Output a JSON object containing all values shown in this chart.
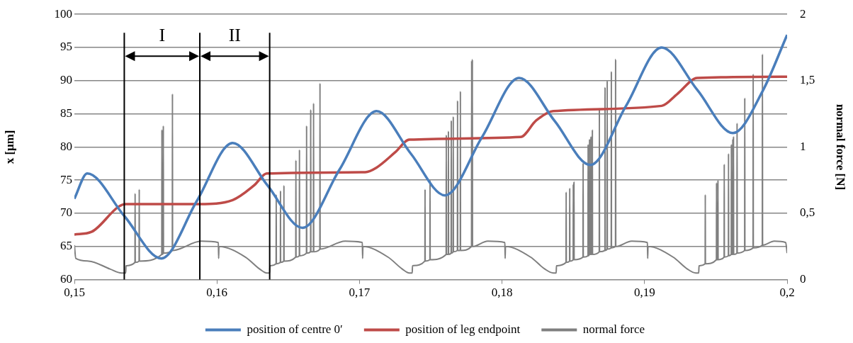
{
  "chart_data": {
    "type": "line",
    "ylabel": "x [μm]",
    "y2label": "normal force [N]",
    "xlim": [
      0.15,
      0.2
    ],
    "xticks": [
      {
        "value": 0.15,
        "label": "0,15"
      },
      {
        "value": 0.16,
        "label": "0,16"
      },
      {
        "value": 0.17,
        "label": "0,17"
      },
      {
        "value": 0.18,
        "label": "0,18"
      },
      {
        "value": 0.19,
        "label": "0,19"
      },
      {
        "value": 0.2,
        "label": "0,2"
      }
    ],
    "ylim": [
      60,
      100
    ],
    "yticks": [
      60,
      65,
      70,
      75,
      80,
      85,
      90,
      95,
      100
    ],
    "y2lim": [
      0,
      2
    ],
    "y2ticks": [
      0,
      {
        "value": 0.5,
        "label": "0,5"
      },
      1,
      {
        "value": 1.5,
        "label": "1,5"
      },
      2
    ],
    "grid": "y",
    "legend": "bottom",
    "marker": "none",
    "series": [
      {
        "name": "position of centre 0ʹ",
        "color": "#4a7ebb",
        "x": [
          0.15,
          0.1509,
          0.1535,
          0.1561,
          0.1586,
          0.1611,
          0.16355,
          0.166,
          0.1686,
          0.1712,
          0.1736,
          0.176,
          0.1786,
          0.1812,
          0.1837,
          0.1862,
          0.1887,
          0.1912,
          0.1937,
          0.1962,
          0.1983,
          0.2
        ],
        "values": [
          72.2,
          76.0,
          69.6,
          63.2,
          71.9,
          80.6,
          74.2,
          67.8,
          76.6,
          85.4,
          79.0,
          72.7,
          81.5,
          90.4,
          83.9,
          77.3,
          86.2,
          95.0,
          88.6,
          82.1,
          88.5,
          96.9
        ]
      },
      {
        "name": "position of leg endpoint",
        "color": "#be4b48",
        "x": [
          0.15,
          0.1512,
          0.1531,
          0.1536,
          0.1588,
          0.1611,
          0.1626,
          0.1635,
          0.1704,
          0.1712,
          0.1725,
          0.1735,
          0.1813,
          0.1824,
          0.1836,
          0.1912,
          0.1923,
          0.1937,
          0.2
        ],
        "values": [
          66.8,
          67.2,
          71.0,
          71.4,
          71.4,
          72.0,
          74.2,
          76.0,
          76.2,
          76.9,
          79.2,
          81.1,
          81.5,
          84.0,
          85.4,
          86.2,
          88.0,
          90.4,
          90.6
        ]
      },
      {
        "name": "normal force",
        "color": "#7f7f7f",
        "axis": "y2",
        "x": [
          0.15,
          0.1501,
          0.151,
          0.1525,
          0.1533,
          0.1536,
          0.15362,
          0.15425,
          0.15426,
          0.15427,
          0.15454,
          0.15455,
          0.15456,
          0.15613,
          0.15614,
          0.15615,
          0.15623,
          0.15624,
          0.15625,
          0.15687,
          0.15688,
          0.15689,
          0.1589,
          0.1601,
          0.16012,
          0.16014,
          0.162,
          0.163,
          0.1635,
          0.1637,
          0.16372,
          0.16415,
          0.16416,
          0.16417,
          0.16445,
          0.16446,
          0.16447,
          0.16469,
          0.1647,
          0.16471,
          0.16553,
          0.16554,
          0.16555,
          0.16578,
          0.16579,
          0.1658,
          0.16628,
          0.16629,
          0.1663,
          0.16657,
          0.16658,
          0.16659,
          0.16677,
          0.16678,
          0.16679,
          0.16722,
          0.16723,
          0.16724,
          0.169,
          0.1702,
          0.17022,
          0.17024,
          0.172,
          0.173,
          0.1735,
          0.1737,
          0.17372,
          0.17459,
          0.1746,
          0.17461,
          0.17494,
          0.17495,
          0.17496,
          0.17608,
          0.17609,
          0.1761,
          0.17623,
          0.17624,
          0.17625,
          0.17643,
          0.17644,
          0.17645,
          0.17657,
          0.17658,
          0.17659,
          0.17687,
          0.17688,
          0.17689,
          0.17707,
          0.17708,
          0.17709,
          0.17786,
          0.17787,
          0.17788,
          0.17791,
          0.17792,
          0.17793,
          0.179,
          0.1802,
          0.18022,
          0.18024,
          0.182,
          0.183,
          0.1836,
          0.1838,
          0.18382,
          0.18449,
          0.1845,
          0.18451,
          0.18474,
          0.18475,
          0.18476,
          0.18499,
          0.185,
          0.18501,
          0.18504,
          0.18505,
          0.18506,
          0.18568,
          0.18569,
          0.1857,
          0.18603,
          0.18604,
          0.18605,
          0.18613,
          0.18614,
          0.18615,
          0.18623,
          0.18624,
          0.18625,
          0.18633,
          0.18634,
          0.18635,
          0.18682,
          0.18683,
          0.18684,
          0.18722,
          0.18723,
          0.18724,
          0.18737,
          0.18738,
          0.18739,
          0.18766,
          0.18767,
          0.18768,
          0.18796,
          0.18797,
          0.18798,
          0.1891,
          0.1902,
          0.19022,
          0.19024,
          0.192,
          0.193,
          0.1936,
          0.1938,
          0.19382,
          0.19425,
          0.19426,
          0.19427,
          0.19504,
          0.19505,
          0.19506,
          0.19514,
          0.19515,
          0.19516,
          0.19558,
          0.19559,
          0.1956,
          0.19588,
          0.19589,
          0.1959,
          0.19608,
          0.19609,
          0.1961,
          0.19618,
          0.19619,
          0.1962,
          0.19623,
          0.19624,
          0.19625,
          0.19648,
          0.19649,
          0.1965,
          0.19702,
          0.19703,
          0.19704,
          0.19761,
          0.19762,
          0.19763,
          0.19826,
          0.19827,
          0.19828,
          0.1991,
          0.1999,
          0.2
        ],
        "values": [
          0.26,
          0.16,
          0.14,
          0.08,
          0.05,
          0.05,
          0.105,
          0.13,
          0.65,
          0.13,
          0.14,
          0.68,
          0.14,
          0.19,
          1.13,
          0.19,
          0.2,
          1.16,
          0.2,
          0.22,
          1.4,
          0.22,
          0.29,
          0.28,
          0.16,
          0.25,
          0.17,
          0.08,
          0.05,
          0.05,
          0.105,
          0.12,
          0.64,
          0.12,
          0.13,
          0.67,
          0.13,
          0.14,
          0.71,
          0.14,
          0.17,
          0.9,
          0.17,
          0.18,
          0.98,
          0.18,
          0.2,
          1.16,
          0.2,
          0.21,
          1.28,
          0.21,
          0.21,
          1.33,
          0.21,
          0.23,
          1.48,
          0.23,
          0.29,
          0.28,
          0.16,
          0.25,
          0.17,
          0.08,
          0.05,
          0.05,
          0.105,
          0.14,
          0.68,
          0.14,
          0.15,
          0.75,
          0.15,
          0.19,
          1.09,
          0.19,
          0.19,
          1.12,
          0.19,
          0.2,
          1.2,
          0.2,
          0.21,
          1.23,
          0.21,
          0.22,
          1.35,
          0.22,
          0.22,
          1.42,
          0.22,
          0.25,
          1.65,
          0.25,
          0.25,
          1.66,
          0.25,
          0.29,
          0.28,
          0.16,
          0.25,
          0.17,
          0.08,
          0.05,
          0.05,
          0.105,
          0.13,
          0.66,
          0.13,
          0.14,
          0.69,
          0.14,
          0.15,
          0.72,
          0.15,
          0.15,
          0.74,
          0.15,
          0.17,
          0.88,
          0.17,
          0.18,
          1.02,
          0.18,
          0.19,
          1.06,
          0.19,
          0.19,
          1.08,
          0.19,
          0.19,
          1.13,
          0.19,
          0.21,
          1.29,
          0.21,
          0.22,
          1.45,
          0.22,
          0.23,
          1.5,
          0.23,
          0.24,
          1.57,
          0.24,
          0.25,
          1.66,
          0.25,
          0.29,
          0.28,
          0.16,
          0.25,
          0.17,
          0.08,
          0.05,
          0.05,
          0.105,
          0.12,
          0.64,
          0.12,
          0.15,
          0.73,
          0.15,
          0.15,
          0.75,
          0.15,
          0.17,
          0.87,
          0.17,
          0.18,
          0.95,
          0.18,
          0.19,
          1.02,
          0.19,
          0.19,
          1.06,
          0.19,
          0.19,
          1.08,
          0.19,
          0.2,
          1.18,
          0.2,
          0.22,
          1.37,
          0.22,
          0.24,
          1.55,
          0.24,
          0.26,
          1.7,
          0.26,
          0.29,
          0.28,
          0.2
        ]
      }
    ],
    "ref_lines": [
      {
        "axis": "x",
        "value": 0.1535,
        "color": "#000000"
      },
      {
        "axis": "x",
        "value": 0.1588,
        "color": "#000000"
      },
      {
        "axis": "x",
        "value": 0.1637,
        "color": "#000000"
      }
    ],
    "annotations": [
      {
        "text": "I",
        "x": 0.1535,
        "y": 93.7
      },
      {
        "text": "II",
        "x": 0.1588,
        "y": 93.7
      }
    ]
  }
}
